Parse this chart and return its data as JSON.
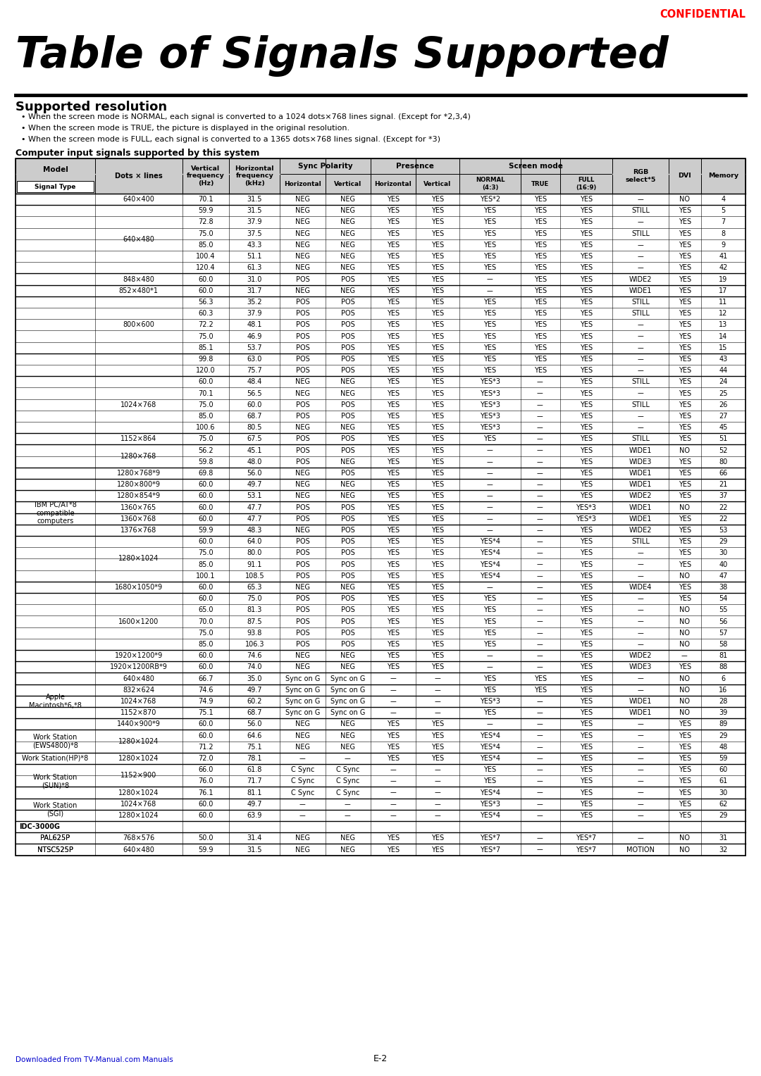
{
  "title": "Table of Signals Supported",
  "subtitle": "Supported resolution",
  "bullets": [
    "When the screen mode is NORMAL, each signal is converted to a 1024 dots×768 lines signal. (Except for *2,3,4)",
    "When the screen mode is TRUE, the picture is displayed in the original resolution.",
    "When the screen mode is FULL, each signal is converted to a 1365 dots×768 lines signal. (Except for *3)"
  ],
  "computer_input_label": "Computer input signals supported by this system",
  "confidential_text": "CONFIDENTIAL",
  "footer": "Downloaded From TV-Manual.com Manuals",
  "page": "E-2",
  "rows": [
    {
      "model": "",
      "dots": "640×400",
      "vf": "70.1",
      "hf": "31.5",
      "sh": "NEG",
      "sv": "NEG",
      "ph": "YES",
      "pv": "YES",
      "normal": "YES*2",
      "true": "YES",
      "full": "YES",
      "rgb": "––",
      "dvi": "NO",
      "mem": "4"
    },
    {
      "model": "",
      "dots": "640×480",
      "vf": "59.9",
      "hf": "31.5",
      "sh": "NEG",
      "sv": "NEG",
      "ph": "YES",
      "pv": "YES",
      "normal": "YES",
      "true": "YES",
      "full": "YES",
      "rgb": "STILL",
      "dvi": "YES",
      "mem": "5"
    },
    {
      "model": "",
      "dots": "",
      "vf": "72.8",
      "hf": "37.9",
      "sh": "NEG",
      "sv": "NEG",
      "ph": "YES",
      "pv": "YES",
      "normal": "YES",
      "true": "YES",
      "full": "YES",
      "rgb": "––",
      "dvi": "YES",
      "mem": "7"
    },
    {
      "model": "",
      "dots": "",
      "vf": "75.0",
      "hf": "37.5",
      "sh": "NEG",
      "sv": "NEG",
      "ph": "YES",
      "pv": "YES",
      "normal": "YES",
      "true": "YES",
      "full": "YES",
      "rgb": "STILL",
      "dvi": "YES",
      "mem": "8"
    },
    {
      "model": "",
      "dots": "",
      "vf": "85.0",
      "hf": "43.3",
      "sh": "NEG",
      "sv": "NEG",
      "ph": "YES",
      "pv": "YES",
      "normal": "YES",
      "true": "YES",
      "full": "YES",
      "rgb": "––",
      "dvi": "YES",
      "mem": "9"
    },
    {
      "model": "",
      "dots": "",
      "vf": "100.4",
      "hf": "51.1",
      "sh": "NEG",
      "sv": "NEG",
      "ph": "YES",
      "pv": "YES",
      "normal": "YES",
      "true": "YES",
      "full": "YES",
      "rgb": "––",
      "dvi": "YES",
      "mem": "41"
    },
    {
      "model": "",
      "dots": "",
      "vf": "120.4",
      "hf": "61.3",
      "sh": "NEG",
      "sv": "NEG",
      "ph": "YES",
      "pv": "YES",
      "normal": "YES",
      "true": "YES",
      "full": "YES",
      "rgb": "––",
      "dvi": "YES",
      "mem": "42"
    },
    {
      "model": "",
      "dots": "848×480",
      "vf": "60.0",
      "hf": "31.0",
      "sh": "POS",
      "sv": "POS",
      "ph": "YES",
      "pv": "YES",
      "normal": "––",
      "true": "YES",
      "full": "YES",
      "rgb": "WIDE2",
      "dvi": "YES",
      "mem": "19"
    },
    {
      "model": "",
      "dots": "852×480*1",
      "vf": "60.0",
      "hf": "31.7",
      "sh": "NEG",
      "sv": "NEG",
      "ph": "YES",
      "pv": "YES",
      "normal": "––",
      "true": "YES",
      "full": "YES",
      "rgb": "WIDE1",
      "dvi": "YES",
      "mem": "17"
    },
    {
      "model": "",
      "dots": "800×600",
      "vf": "56.3",
      "hf": "35.2",
      "sh": "POS",
      "sv": "POS",
      "ph": "YES",
      "pv": "YES",
      "normal": "YES",
      "true": "YES",
      "full": "YES",
      "rgb": "STILL",
      "dvi": "YES",
      "mem": "11"
    },
    {
      "model": "",
      "dots": "",
      "vf": "60.3",
      "hf": "37.9",
      "sh": "POS",
      "sv": "POS",
      "ph": "YES",
      "pv": "YES",
      "normal": "YES",
      "true": "YES",
      "full": "YES",
      "rgb": "STILL",
      "dvi": "YES",
      "mem": "12"
    },
    {
      "model": "",
      "dots": "",
      "vf": "72.2",
      "hf": "48.1",
      "sh": "POS",
      "sv": "POS",
      "ph": "YES",
      "pv": "YES",
      "normal": "YES",
      "true": "YES",
      "full": "YES",
      "rgb": "––",
      "dvi": "YES",
      "mem": "13"
    },
    {
      "model": "",
      "dots": "",
      "vf": "75.0",
      "hf": "46.9",
      "sh": "POS",
      "sv": "POS",
      "ph": "YES",
      "pv": "YES",
      "normal": "YES",
      "true": "YES",
      "full": "YES",
      "rgb": "––",
      "dvi": "YES",
      "mem": "14"
    },
    {
      "model": "",
      "dots": "",
      "vf": "85.1",
      "hf": "53.7",
      "sh": "POS",
      "sv": "POS",
      "ph": "YES",
      "pv": "YES",
      "normal": "YES",
      "true": "YES",
      "full": "YES",
      "rgb": "––",
      "dvi": "YES",
      "mem": "15"
    },
    {
      "model": "IBM PC/AT*8\ncompatible\ncomputers",
      "dots": "",
      "vf": "99.8",
      "hf": "63.0",
      "sh": "POS",
      "sv": "POS",
      "ph": "YES",
      "pv": "YES",
      "normal": "YES",
      "true": "YES",
      "full": "YES",
      "rgb": "––",
      "dvi": "YES",
      "mem": "43"
    },
    {
      "model": "",
      "dots": "",
      "vf": "120.0",
      "hf": "75.7",
      "sh": "POS",
      "sv": "POS",
      "ph": "YES",
      "pv": "YES",
      "normal": "YES",
      "true": "YES",
      "full": "YES",
      "rgb": "––",
      "dvi": "YES",
      "mem": "44"
    },
    {
      "model": "",
      "dots": "1024×768",
      "vf": "60.0",
      "hf": "48.4",
      "sh": "NEG",
      "sv": "NEG",
      "ph": "YES",
      "pv": "YES",
      "normal": "YES*3",
      "true": "––",
      "full": "YES",
      "rgb": "STILL",
      "dvi": "YES",
      "mem": "24"
    },
    {
      "model": "",
      "dots": "",
      "vf": "70.1",
      "hf": "56.5",
      "sh": "NEG",
      "sv": "NEG",
      "ph": "YES",
      "pv": "YES",
      "normal": "YES*3",
      "true": "––",
      "full": "YES",
      "rgb": "––",
      "dvi": "YES",
      "mem": "25"
    },
    {
      "model": "",
      "dots": "",
      "vf": "75.0",
      "hf": "60.0",
      "sh": "POS",
      "sv": "POS",
      "ph": "YES",
      "pv": "YES",
      "normal": "YES*3",
      "true": "––",
      "full": "YES",
      "rgb": "STILL",
      "dvi": "YES",
      "mem": "26"
    },
    {
      "model": "",
      "dots": "",
      "vf": "85.0",
      "hf": "68.7",
      "sh": "POS",
      "sv": "POS",
      "ph": "YES",
      "pv": "YES",
      "normal": "YES*3",
      "true": "––",
      "full": "YES",
      "rgb": "––",
      "dvi": "YES",
      "mem": "27"
    },
    {
      "model": "",
      "dots": "",
      "vf": "100.6",
      "hf": "80.5",
      "sh": "NEG",
      "sv": "NEG",
      "ph": "YES",
      "pv": "YES",
      "normal": "YES*3",
      "true": "––",
      "full": "YES",
      "rgb": "––",
      "dvi": "YES",
      "mem": "45"
    },
    {
      "model": "",
      "dots": "1152×864",
      "vf": "75.0",
      "hf": "67.5",
      "sh": "POS",
      "sv": "POS",
      "ph": "YES",
      "pv": "YES",
      "normal": "YES",
      "true": "––",
      "full": "YES",
      "rgb": "STILL",
      "dvi": "YES",
      "mem": "51"
    },
    {
      "model": "",
      "dots": "1280×768",
      "vf": "56.2",
      "hf": "45.1",
      "sh": "POS",
      "sv": "POS",
      "ph": "YES",
      "pv": "YES",
      "normal": "––",
      "true": "––",
      "full": "YES",
      "rgb": "WIDE1",
      "dvi": "NO",
      "mem": "52"
    },
    {
      "model": "",
      "dots": "",
      "vf": "59.8",
      "hf": "48.0",
      "sh": "POS",
      "sv": "NEG",
      "ph": "YES",
      "pv": "YES",
      "normal": "––",
      "true": "––",
      "full": "YES",
      "rgb": "WIDE3",
      "dvi": "YES",
      "mem": "80"
    },
    {
      "model": "",
      "dots": "1280×768*9",
      "vf": "69.8",
      "hf": "56.0",
      "sh": "NEG",
      "sv": "POS",
      "ph": "YES",
      "pv": "YES",
      "normal": "––",
      "true": "––",
      "full": "YES",
      "rgb": "WIDE1",
      "dvi": "YES",
      "mem": "66"
    },
    {
      "model": "",
      "dots": "1280×800*9",
      "vf": "60.0",
      "hf": "49.7",
      "sh": "NEG",
      "sv": "NEG",
      "ph": "YES",
      "pv": "YES",
      "normal": "––",
      "true": "––",
      "full": "YES",
      "rgb": "WIDE1",
      "dvi": "YES",
      "mem": "21"
    },
    {
      "model": "",
      "dots": "1280×854*9",
      "vf": "60.0",
      "hf": "53.1",
      "sh": "NEG",
      "sv": "NEG",
      "ph": "YES",
      "pv": "YES",
      "normal": "––",
      "true": "––",
      "full": "YES",
      "rgb": "WIDE2",
      "dvi": "YES",
      "mem": "37"
    },
    {
      "model": "",
      "dots": "1360×765",
      "vf": "60.0",
      "hf": "47.7",
      "sh": "POS",
      "sv": "POS",
      "ph": "YES",
      "pv": "YES",
      "normal": "––",
      "true": "––",
      "full": "YES*3",
      "rgb": "WIDE1",
      "dvi": "NO",
      "mem": "22"
    },
    {
      "model": "",
      "dots": "1360×768",
      "vf": "60.0",
      "hf": "47.7",
      "sh": "POS",
      "sv": "POS",
      "ph": "YES",
      "pv": "YES",
      "normal": "––",
      "true": "––",
      "full": "YES*3",
      "rgb": "WIDE1",
      "dvi": "YES",
      "mem": "22"
    },
    {
      "model": "",
      "dots": "1376×768",
      "vf": "59.9",
      "hf": "48.3",
      "sh": "NEG",
      "sv": "POS",
      "ph": "YES",
      "pv": "YES",
      "normal": "––",
      "true": "––",
      "full": "YES",
      "rgb": "WIDE2",
      "dvi": "YES",
      "mem": "53"
    },
    {
      "model": "",
      "dots": "1280×1024",
      "vf": "60.0",
      "hf": "64.0",
      "sh": "POS",
      "sv": "POS",
      "ph": "YES",
      "pv": "YES",
      "normal": "YES*4",
      "true": "––",
      "full": "YES",
      "rgb": "STILL",
      "dvi": "YES",
      "mem": "29"
    },
    {
      "model": "",
      "dots": "",
      "vf": "75.0",
      "hf": "80.0",
      "sh": "POS",
      "sv": "POS",
      "ph": "YES",
      "pv": "YES",
      "normal": "YES*4",
      "true": "––",
      "full": "YES",
      "rgb": "––",
      "dvi": "YES",
      "mem": "30"
    },
    {
      "model": "",
      "dots": "",
      "vf": "85.0",
      "hf": "91.1",
      "sh": "POS",
      "sv": "POS",
      "ph": "YES",
      "pv": "YES",
      "normal": "YES*4",
      "true": "––",
      "full": "YES",
      "rgb": "––",
      "dvi": "YES",
      "mem": "40"
    },
    {
      "model": "",
      "dots": "",
      "vf": "100.1",
      "hf": "108.5",
      "sh": "POS",
      "sv": "POS",
      "ph": "YES",
      "pv": "YES",
      "normal": "YES*4",
      "true": "––",
      "full": "YES",
      "rgb": "––",
      "dvi": "NO",
      "mem": "47"
    },
    {
      "model": "",
      "dots": "1680×1050*9",
      "vf": "60.0",
      "hf": "65.3",
      "sh": "NEG",
      "sv": "NEG",
      "ph": "YES",
      "pv": "YES",
      "normal": "––",
      "true": "––",
      "full": "YES",
      "rgb": "WIDE4",
      "dvi": "YES",
      "mem": "38"
    },
    {
      "model": "",
      "dots": "1600×1200",
      "vf": "60.0",
      "hf": "75.0",
      "sh": "POS",
      "sv": "POS",
      "ph": "YES",
      "pv": "YES",
      "normal": "YES",
      "true": "––",
      "full": "YES",
      "rgb": "––",
      "dvi": "YES",
      "mem": "54"
    },
    {
      "model": "",
      "dots": "",
      "vf": "65.0",
      "hf": "81.3",
      "sh": "POS",
      "sv": "POS",
      "ph": "YES",
      "pv": "YES",
      "normal": "YES",
      "true": "––",
      "full": "YES",
      "rgb": "––",
      "dvi": "NO",
      "mem": "55"
    },
    {
      "model": "",
      "dots": "",
      "vf": "70.0",
      "hf": "87.5",
      "sh": "POS",
      "sv": "POS",
      "ph": "YES",
      "pv": "YES",
      "normal": "YES",
      "true": "––",
      "full": "YES",
      "rgb": "––",
      "dvi": "NO",
      "mem": "56"
    },
    {
      "model": "",
      "dots": "",
      "vf": "75.0",
      "hf": "93.8",
      "sh": "POS",
      "sv": "POS",
      "ph": "YES",
      "pv": "YES",
      "normal": "YES",
      "true": "––",
      "full": "YES",
      "rgb": "––",
      "dvi": "NO",
      "mem": "57"
    },
    {
      "model": "",
      "dots": "",
      "vf": "85.0",
      "hf": "106.3",
      "sh": "POS",
      "sv": "POS",
      "ph": "YES",
      "pv": "YES",
      "normal": "YES",
      "true": "––",
      "full": "YES",
      "rgb": "––",
      "dvi": "NO",
      "mem": "58"
    },
    {
      "model": "",
      "dots": "1920×1200*9",
      "vf": "60.0",
      "hf": "74.6",
      "sh": "NEG",
      "sv": "NEG",
      "ph": "YES",
      "pv": "YES",
      "normal": "––",
      "true": "––",
      "full": "YES",
      "rgb": "WIDE2",
      "dvi": "––",
      "mem": "81"
    },
    {
      "model": "",
      "dots": "1920×1200RB*9",
      "vf": "60.0",
      "hf": "74.0",
      "sh": "NEG",
      "sv": "NEG",
      "ph": "YES",
      "pv": "YES",
      "normal": "––",
      "true": "––",
      "full": "YES",
      "rgb": "WIDE3",
      "dvi": "YES",
      "mem": "88"
    },
    {
      "model": "Apple\nMacintosh*6,*8",
      "dots": "640×480",
      "vf": "66.7",
      "hf": "35.0",
      "sh": "Sync on G",
      "sv": "Sync on G",
      "ph": "––",
      "pv": "––",
      "normal": "YES",
      "true": "YES",
      "full": "YES",
      "rgb": "––",
      "dvi": "NO",
      "mem": "6"
    },
    {
      "model": "",
      "dots": "832×624",
      "vf": "74.6",
      "hf": "49.7",
      "sh": "Sync on G",
      "sv": "Sync on G",
      "ph": "––",
      "pv": "––",
      "normal": "YES",
      "true": "YES",
      "full": "YES",
      "rgb": "––",
      "dvi": "NO",
      "mem": "16"
    },
    {
      "model": "",
      "dots": "1024×768",
      "vf": "74.9",
      "hf": "60.2",
      "sh": "Sync on G",
      "sv": "Sync on G",
      "ph": "––",
      "pv": "––",
      "normal": "YES*3",
      "true": "––",
      "full": "YES",
      "rgb": "WIDE1",
      "dvi": "NO",
      "mem": "28"
    },
    {
      "model": "",
      "dots": "1152×870",
      "vf": "75.1",
      "hf": "68.7",
      "sh": "Sync on G",
      "sv": "Sync on G",
      "ph": "––",
      "pv": "––",
      "normal": "YES",
      "true": "––",
      "full": "YES",
      "rgb": "WIDE1",
      "dvi": "NO",
      "mem": "39"
    },
    {
      "model": "",
      "dots": "1440×900*9",
      "vf": "60.0",
      "hf": "56.0",
      "sh": "NEG",
      "sv": "NEG",
      "ph": "YES",
      "pv": "YES",
      "normal": "––",
      "true": "––",
      "full": "YES",
      "rgb": "––",
      "dvi": "YES",
      "mem": "89"
    },
    {
      "model": "Work Station\n(EWS4800)*8",
      "dots": "1280×1024",
      "vf": "60.0",
      "hf": "64.6",
      "sh": "NEG",
      "sv": "NEG",
      "ph": "YES",
      "pv": "YES",
      "normal": "YES*4",
      "true": "––",
      "full": "YES",
      "rgb": "––",
      "dvi": "YES",
      "mem": "29"
    },
    {
      "model": "",
      "dots": "",
      "vf": "71.2",
      "hf": "75.1",
      "sh": "NEG",
      "sv": "NEG",
      "ph": "YES",
      "pv": "YES",
      "normal": "YES*4",
      "true": "––",
      "full": "YES",
      "rgb": "––",
      "dvi": "YES",
      "mem": "48"
    },
    {
      "model": "Work Station(HP)*8",
      "dots": "1280×1024",
      "vf": "72.0",
      "hf": "78.1",
      "sh": "––",
      "sv": "––",
      "ph": "YES",
      "pv": "YES",
      "normal": "YES*4",
      "true": "––",
      "full": "YES",
      "rgb": "––",
      "dvi": "YES",
      "mem": "59"
    },
    {
      "model": "Work Station\n(SUN)*8",
      "dots": "1152×900",
      "vf": "66.0",
      "hf": "61.8",
      "sh": "C Sync",
      "sv": "C Sync",
      "ph": "––",
      "pv": "––",
      "normal": "YES",
      "true": "––",
      "full": "YES",
      "rgb": "––",
      "dvi": "YES",
      "mem": "60"
    },
    {
      "model": "",
      "dots": "",
      "vf": "76.0",
      "hf": "71.7",
      "sh": "C Sync",
      "sv": "C Sync",
      "ph": "––",
      "pv": "––",
      "normal": "YES",
      "true": "––",
      "full": "YES",
      "rgb": "––",
      "dvi": "YES",
      "mem": "61"
    },
    {
      "model": "",
      "dots": "1280×1024",
      "vf": "76.1",
      "hf": "81.1",
      "sh": "C Sync",
      "sv": "C Sync",
      "ph": "––",
      "pv": "––",
      "normal": "YES*4",
      "true": "––",
      "full": "YES",
      "rgb": "––",
      "dvi": "YES",
      "mem": "30"
    },
    {
      "model": "Work Station\n(SGI)",
      "dots": "1024×768",
      "vf": "60.0",
      "hf": "49.7",
      "sh": "––",
      "sv": "––",
      "ph": "––",
      "pv": "––",
      "normal": "YES*3",
      "true": "––",
      "full": "YES",
      "rgb": "––",
      "dvi": "YES",
      "mem": "62"
    },
    {
      "model": "",
      "dots": "1280×1024",
      "vf": "60.0",
      "hf": "63.9",
      "sh": "––",
      "sv": "––",
      "ph": "––",
      "pv": "––",
      "normal": "YES*4",
      "true": "––",
      "full": "YES",
      "rgb": "––",
      "dvi": "YES",
      "mem": "29"
    },
    {
      "model": "IDC-3000G",
      "dots": "",
      "vf": "",
      "hf": "",
      "sh": "",
      "sv": "",
      "ph": "",
      "pv": "",
      "normal": "",
      "true": "",
      "full": "",
      "rgb": "",
      "dvi": "",
      "mem": ""
    },
    {
      "model": "PAL625P",
      "dots": "768×576",
      "vf": "50.0",
      "hf": "31.4",
      "sh": "NEG",
      "sv": "NEG",
      "ph": "YES",
      "pv": "YES",
      "normal": "YES*7",
      "true": "––",
      "full": "YES*7",
      "rgb": "––",
      "dvi": "NO",
      "mem": "31"
    },
    {
      "model": "NTSC525P",
      "dots": "640×480",
      "vf": "59.9",
      "hf": "31.5",
      "sh": "NEG",
      "sv": "NEG",
      "ph": "YES",
      "pv": "YES",
      "normal": "YES*7",
      "true": "––",
      "full": "YES*7",
      "rgb": "MOTION",
      "dvi": "NO",
      "mem": "32"
    }
  ]
}
